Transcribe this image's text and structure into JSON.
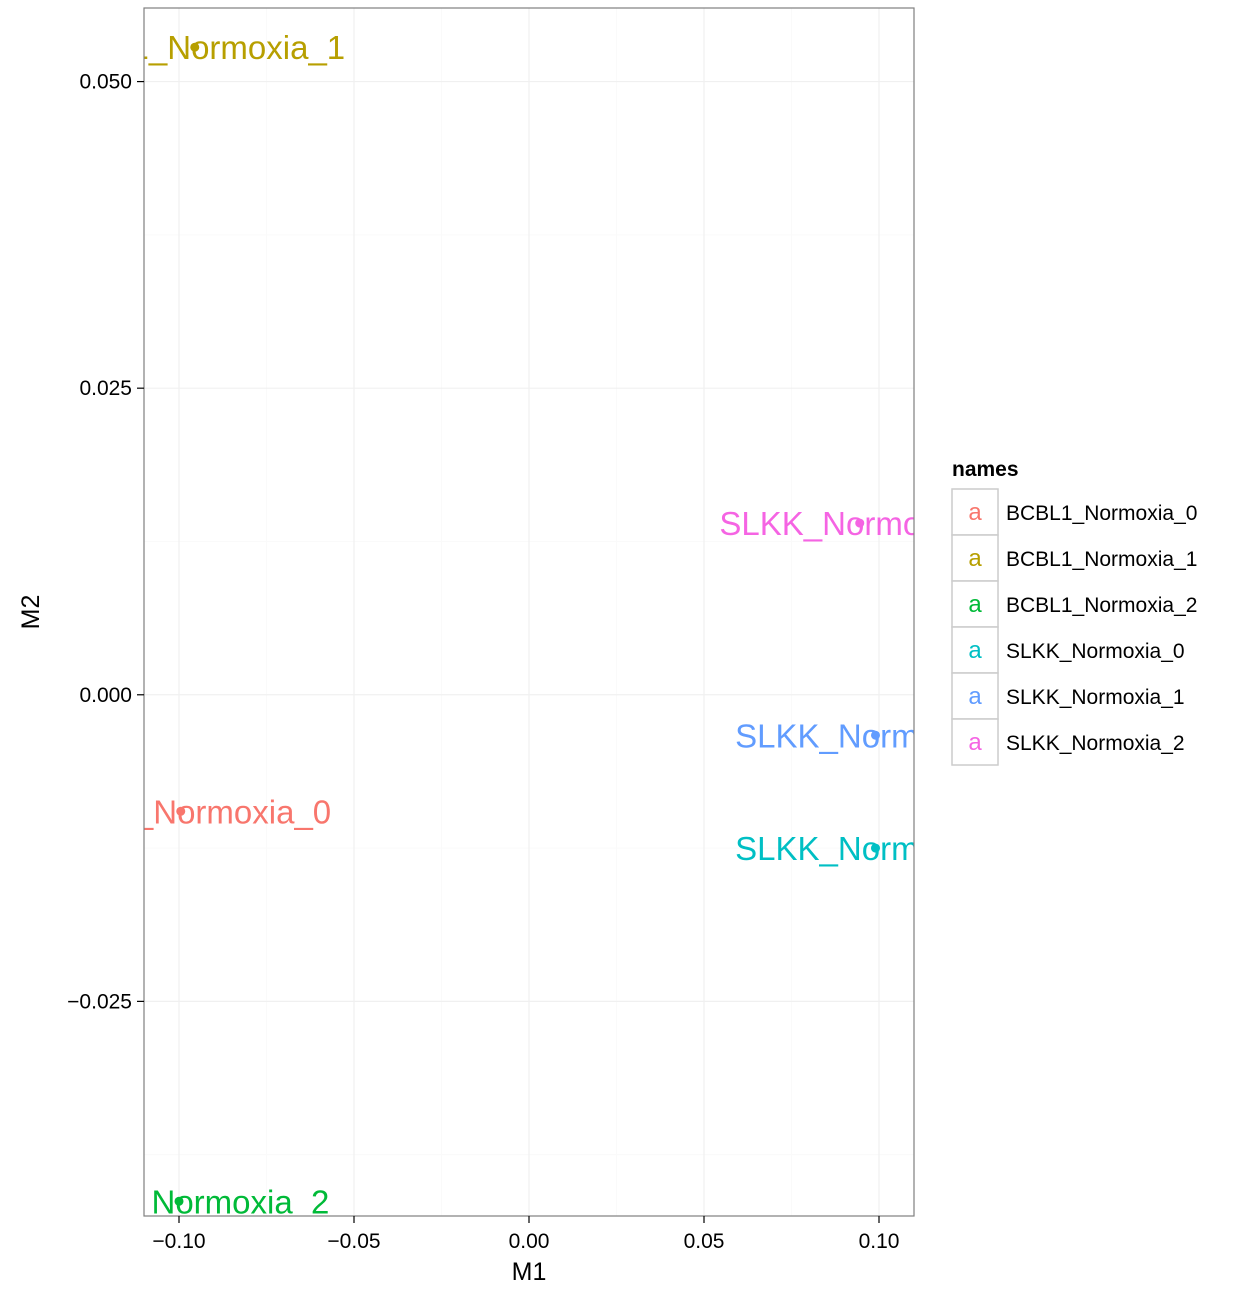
{
  "chart_data": {
    "type": "scatter",
    "title": "",
    "xlabel": "M1",
    "ylabel": "M2",
    "xlim": [
      -0.11,
      0.11
    ],
    "ylim": [
      -0.0425,
      0.056
    ],
    "x_ticks": [
      -0.1,
      -0.05,
      0.0,
      0.05,
      0.1
    ],
    "x_tick_labels": [
      "−0.10",
      "−0.05",
      "0.00",
      "0.05",
      "0.10"
    ],
    "y_ticks": [
      -0.025,
      0.0,
      0.025,
      0.05
    ],
    "y_tick_labels": [
      "−0.025",
      "0.000",
      "0.025",
      "0.050"
    ],
    "grid": true,
    "legend": {
      "title": "names",
      "placement": "right",
      "key_glyph": "a"
    },
    "series": [
      {
        "name": "BCBL1_Normoxia_0",
        "color": "#F8766D",
        "x": -0.0995,
        "y": -0.0095,
        "label": "BCBL1_Normoxia_0"
      },
      {
        "name": "BCBL1_Normoxia_1",
        "color": "#B79F00",
        "x": -0.0955,
        "y": 0.0528,
        "label": "BCBL1_Normoxia_1"
      },
      {
        "name": "BCBL1_Normoxia_2",
        "color": "#00BA38",
        "x": -0.1,
        "y": -0.0413,
        "label": "BCBL1_Normoxia_2"
      },
      {
        "name": "SLKK_Normoxia_0",
        "color": "#00BFC4",
        "x": 0.099,
        "y": -0.0125,
        "label": "SLKK_Normoxia_0"
      },
      {
        "name": "SLKK_Normoxia_1",
        "color": "#619CFF",
        "x": 0.099,
        "y": -0.0033,
        "label": "SLKK_Normoxia_1"
      },
      {
        "name": "SLKK_Normoxia_2",
        "color": "#F564E3",
        "x": 0.0945,
        "y": 0.014,
        "label": "SLKK_Normoxia_2"
      }
    ]
  }
}
